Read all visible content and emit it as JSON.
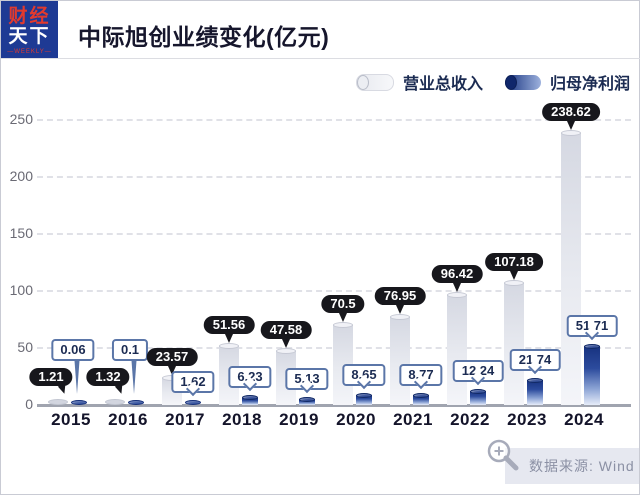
{
  "logo": {
    "line1": "财经",
    "line2": "天下",
    "line3": "—WEEKLY—"
  },
  "title": "中际旭创业绩变化(亿元)",
  "legend": {
    "revenue": "营业总收入",
    "profit": "归母净利润"
  },
  "source": {
    "label": "数据来源: Wind"
  },
  "colors": {
    "brand_navy": "#1e3a94",
    "brand_red": "#e23a2e",
    "revenue_bar": "#dcdee6",
    "profit_bar_dark": "#17327f",
    "profit_bar_light": "#e6ecf9",
    "black_bubble": "#17171c",
    "white_bubble_border": "#5b76a8",
    "axis": "#a0a4af"
  },
  "chart_data": {
    "type": "bar",
    "title": "中际旭创业绩变化(亿元)",
    "categories": [
      "2015",
      "2016",
      "2017",
      "2018",
      "2019",
      "2020",
      "2021",
      "2022",
      "2023",
      "2024"
    ],
    "series": [
      {
        "name": "营业总收入",
        "values": [
          1.21,
          1.32,
          23.57,
          51.56,
          47.58,
          70.5,
          76.95,
          96.42,
          107.18,
          238.62
        ]
      },
      {
        "name": "归母净利润",
        "values": [
          0.06,
          0.1,
          1.62,
          6.23,
          5.13,
          8.65,
          8.77,
          12.24,
          21.74,
          51.71
        ]
      }
    ],
    "xlabel": "",
    "ylabel": "",
    "ylim": [
      0,
      250
    ],
    "yticks": [
      0,
      50,
      100,
      150,
      200,
      250
    ],
    "grid": "dashed-horizontal",
    "legend_position": "top-right",
    "data_labels": true
  }
}
